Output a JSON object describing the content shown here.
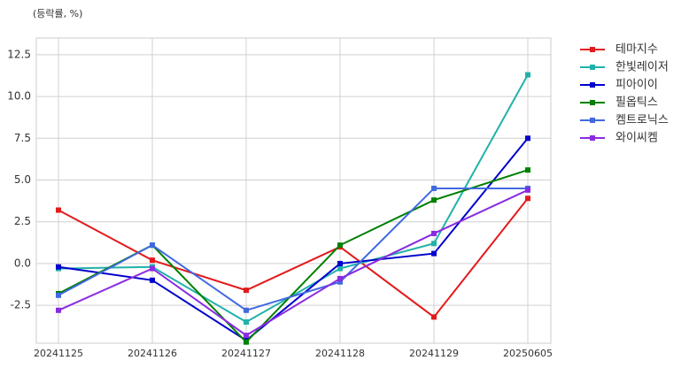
{
  "chart_data": {
    "type": "line",
    "annotation": "(등락률, %)",
    "categories": [
      "20241125",
      "20241126",
      "20241127",
      "20241128",
      "20241129",
      "20250605"
    ],
    "series": [
      {
        "name": "테마지수",
        "color": "#e31a1c",
        "values": [
          3.2,
          0.2,
          -1.6,
          1.0,
          -3.2,
          3.9
        ]
      },
      {
        "name": "한빛레이저",
        "color": "#20b2aa",
        "values": [
          -0.3,
          -0.2,
          -3.5,
          -0.3,
          1.2,
          11.3
        ]
      },
      {
        "name": "피아이이",
        "color": "#0000cd",
        "values": [
          -0.2,
          -1.0,
          -4.6,
          0.0,
          0.6,
          7.5
        ]
      },
      {
        "name": "필옵틱스",
        "color": "#008000",
        "values": [
          -1.8,
          1.1,
          -4.7,
          1.1,
          3.8,
          5.6
        ]
      },
      {
        "name": "켐트로닉스",
        "color": "#4169e1",
        "values": [
          -1.9,
          1.1,
          -2.8,
          -1.1,
          4.5,
          4.5
        ]
      },
      {
        "name": "와이씨켐",
        "color": "#8a2be2",
        "values": [
          -2.8,
          -0.3,
          -4.3,
          -0.9,
          1.8,
          4.4
        ]
      }
    ],
    "ylim": [
      -4.77,
      13.5
    ],
    "yticks": [
      -2.5,
      {
        "value": 0,
        "label": "0.0"
      },
      2.5,
      {
        "value": 5,
        "label": "5.0"
      },
      7.5,
      {
        "value": 10,
        "label": "10.0"
      },
      12.5
    ],
    "grid": true,
    "legend": "outside-right"
  }
}
